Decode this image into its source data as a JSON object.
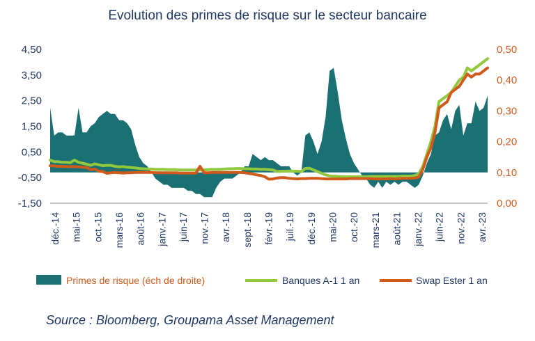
{
  "chart_data": {
    "type": "area+line",
    "title": "Evolution des primes de risque sur le secteur bancaire",
    "source": "Source : Bloomberg, Groupama Asset Management",
    "x_ticks": [
      "déc.-14",
      "mai-15",
      "oct.-15",
      "mars-16",
      "août-16",
      "janv.-17",
      "juin-17",
      "nov.-17",
      "avr.-18",
      "sept.-18",
      "févr.-19",
      "juil.-19",
      "déc.-19",
      "mai-20",
      "oct.-20",
      "mars-21",
      "août-21",
      "janv.-22",
      "juin-22",
      "nov.-22",
      "avr.-23"
    ],
    "y_left": {
      "ticks": [
        "4,50",
        "3,50",
        "2,50",
        "1,50",
        "0,50",
        "-0,50",
        "-1,50"
      ],
      "min": -1.5,
      "max": 4.5
    },
    "y_right": {
      "ticks": [
        "0,50",
        "0,40",
        "0,30",
        "0,20",
        "0,10",
        "0,00"
      ],
      "min": 0.0,
      "max": 0.5
    },
    "colors": {
      "area": "#1a7073",
      "green": "#92c83e",
      "orange": "#d05a1b",
      "title": "#1f3864",
      "right_axis": "#d05a1b"
    },
    "legend": [
      {
        "name": "Primes de risque (éch de droite)",
        "color": "#1a7073",
        "shape": "box",
        "text_color": "#d05a1b"
      },
      {
        "name": "Banques A-1 1 an",
        "color": "#92c83e",
        "shape": "line",
        "text_color": "#1f3864"
      },
      {
        "name": "Swap Ester 1 an",
        "color": "#d05a1b",
        "shape": "line",
        "text_color": "#1f3864"
      }
    ],
    "series": [
      {
        "name": "Primes de risque (éch de droite)",
        "axis": "right",
        "kind": "area",
        "values": [
          0.31,
          0.22,
          0.23,
          0.23,
          0.22,
          0.22,
          0.22,
          0.31,
          0.23,
          0.23,
          0.25,
          0.26,
          0.28,
          0.29,
          0.3,
          0.29,
          0.29,
          0.27,
          0.27,
          0.26,
          0.24,
          0.19,
          0.15,
          0.13,
          0.12,
          0.1,
          0.08,
          0.07,
          0.06,
          0.06,
          0.05,
          0.05,
          0.05,
          0.05,
          0.04,
          0.04,
          0.03,
          0.03,
          0.02,
          0.02,
          0.02,
          0.05,
          0.07,
          0.08,
          0.08,
          0.08,
          0.09,
          0.1,
          0.12,
          0.12,
          0.16,
          0.15,
          0.14,
          0.15,
          0.14,
          0.14,
          0.13,
          0.12,
          0.12,
          0.12,
          0.1,
          0.09,
          0.1,
          0.22,
          0.23,
          0.2,
          0.16,
          0.2,
          0.28,
          0.43,
          0.44,
          0.36,
          0.27,
          0.21,
          0.16,
          0.13,
          0.11,
          0.09,
          0.08,
          0.06,
          0.05,
          0.07,
          0.05,
          0.07,
          0.06,
          0.07,
          0.06,
          0.07,
          0.07,
          0.06,
          0.05,
          0.06,
          0.09,
          0.13,
          0.16,
          0.22,
          0.23,
          0.27,
          0.29,
          0.24,
          0.3,
          0.32,
          0.22,
          0.26,
          0.26,
          0.33,
          0.3,
          0.31,
          0.35
        ]
      },
      {
        "name": "Banques A-1 1 an",
        "axis": "right",
        "kind": "line",
        "values": [
          0.14,
          0.135,
          0.135,
          0.133,
          0.133,
          0.132,
          0.14,
          0.133,
          0.13,
          0.127,
          0.123,
          0.128,
          0.125,
          0.122,
          0.123,
          0.123,
          0.12,
          0.118,
          0.119,
          0.117,
          0.116,
          0.115,
          0.113,
          0.112,
          0.111,
          0.111,
          0.11,
          0.11,
          0.11,
          0.109,
          0.109,
          0.109,
          0.108,
          0.108,
          0.108,
          0.108,
          0.108,
          0.108,
          0.108,
          0.109,
          0.11,
          0.11,
          0.11,
          0.111,
          0.112,
          0.112,
          0.113,
          0.113,
          0.112,
          0.112,
          0.111,
          0.111,
          0.11,
          0.11,
          0.109,
          0.108,
          0.103,
          0.104,
          0.104,
          0.105,
          0.104,
          0.104,
          0.103,
          0.113,
          0.114,
          0.108,
          0.103,
          0.097,
          0.092,
          0.089,
          0.088,
          0.087,
          0.086,
          0.086,
          0.086,
          0.086,
          0.086,
          0.086,
          0.086,
          0.087,
          0.087,
          0.087,
          0.087,
          0.087,
          0.087,
          0.087,
          0.087,
          0.088,
          0.088,
          0.088,
          0.09,
          0.095,
          0.12,
          0.16,
          0.2,
          0.25,
          0.33,
          0.34,
          0.35,
          0.36,
          0.38,
          0.4,
          0.41,
          0.44,
          0.43,
          0.44,
          0.45,
          0.46,
          0.47
        ]
      },
      {
        "name": "Swap Ester 1 an",
        "axis": "right",
        "kind": "line",
        "values": [
          0.122,
          0.121,
          0.12,
          0.12,
          0.119,
          0.119,
          0.119,
          0.118,
          0.117,
          0.116,
          0.109,
          0.111,
          0.104,
          0.103,
          0.097,
          0.099,
          0.1,
          0.099,
          0.098,
          0.099,
          0.099,
          0.1,
          0.1,
          0.1,
          0.1,
          0.1,
          0.099,
          0.099,
          0.099,
          0.099,
          0.099,
          0.099,
          0.098,
          0.098,
          0.098,
          0.098,
          0.098,
          0.12,
          0.099,
          0.099,
          0.1,
          0.1,
          0.1,
          0.1,
          0.1,
          0.1,
          0.1,
          0.1,
          0.099,
          0.097,
          0.095,
          0.092,
          0.09,
          0.086,
          0.078,
          0.079,
          0.082,
          0.083,
          0.083,
          0.081,
          0.08,
          0.079,
          0.08,
          0.08,
          0.081,
          0.081,
          0.081,
          0.08,
          0.079,
          0.079,
          0.079,
          0.079,
          0.079,
          0.079,
          0.08,
          0.08,
          0.08,
          0.08,
          0.08,
          0.08,
          0.079,
          0.079,
          0.079,
          0.079,
          0.08,
          0.079,
          0.08,
          0.081,
          0.081,
          0.081,
          0.082,
          0.085,
          0.11,
          0.15,
          0.18,
          0.23,
          0.31,
          0.32,
          0.33,
          0.36,
          0.37,
          0.38,
          0.4,
          0.42,
          0.41,
          0.42,
          0.42,
          0.43,
          0.44
        ]
      }
    ]
  }
}
